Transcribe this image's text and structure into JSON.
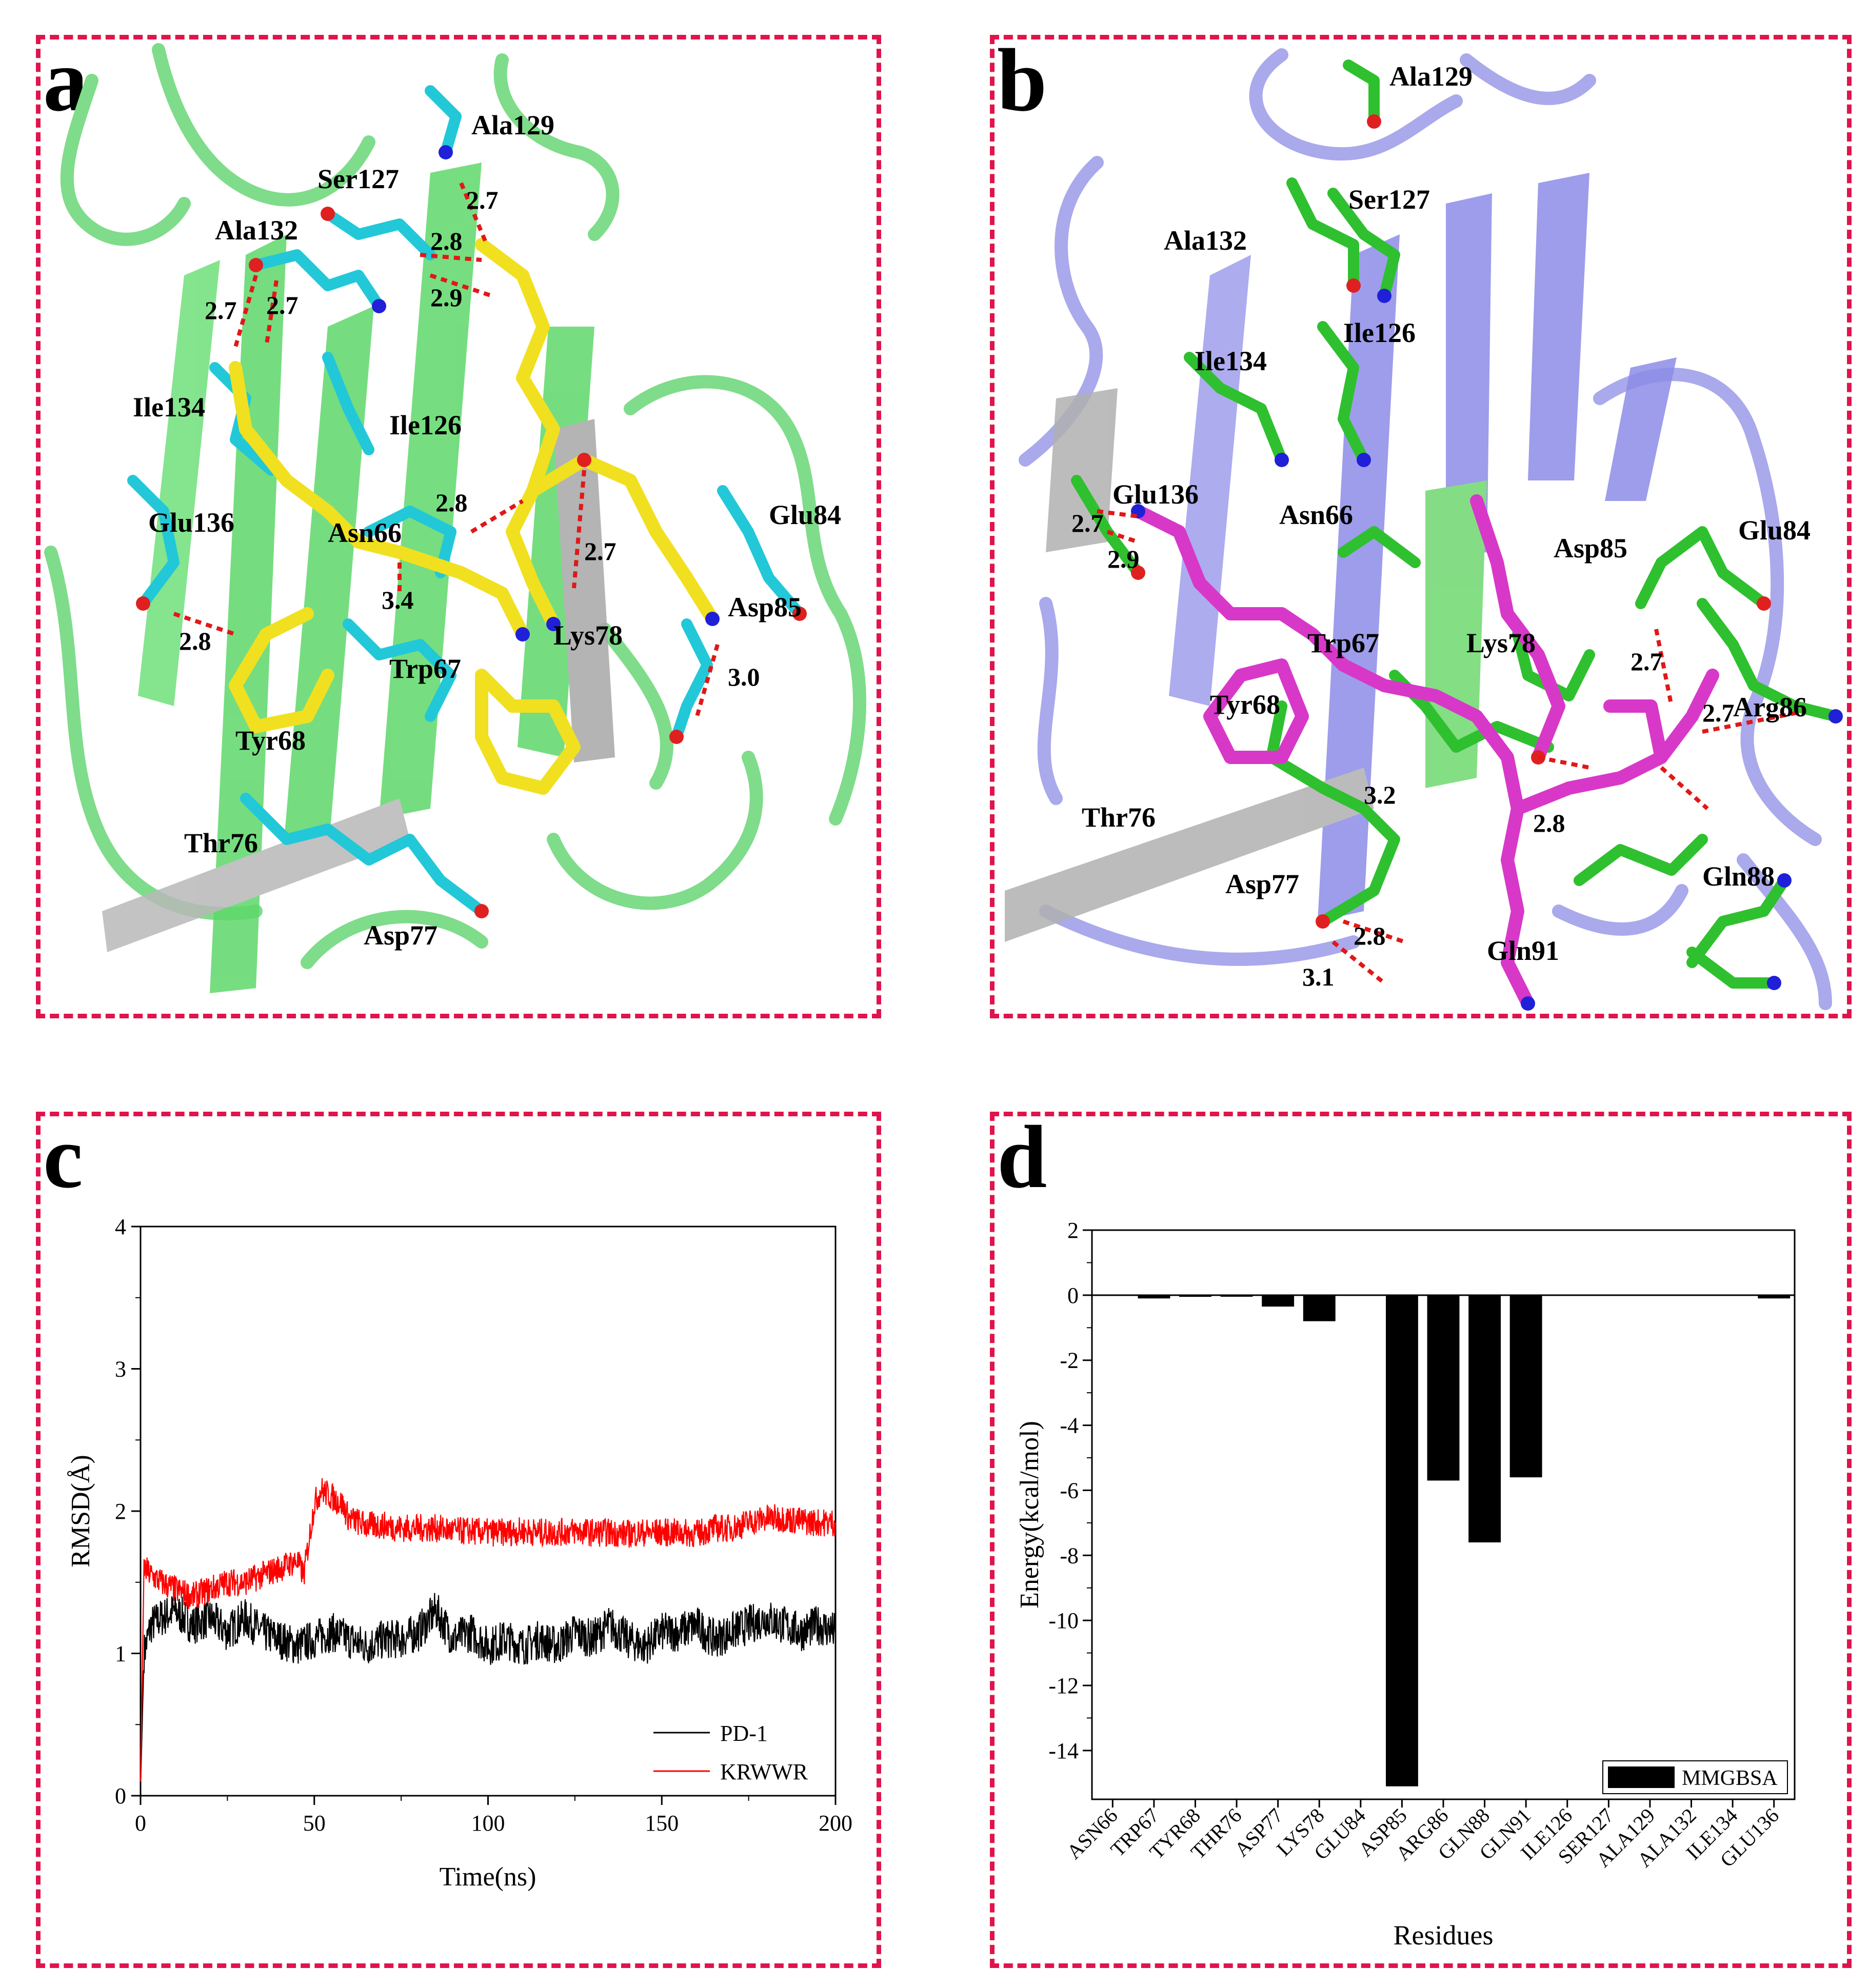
{
  "panel_a": {
    "letter": "a",
    "residue_labels": [
      "Ala129",
      "Ser127",
      "Ala132",
      "Ile134",
      "Ile126",
      "Glu136",
      "Asn66",
      "Glu84",
      "Asp85",
      "Lys78",
      "Trp67",
      "Tyr68",
      "Thr76",
      "Asp77"
    ],
    "hbond_labels": [
      "2.7",
      "2.8",
      "2.9",
      "2.7",
      "2.7",
      "2.8",
      "2.7",
      "2.8",
      "3.4",
      "3.0"
    ],
    "colors": {
      "cartoon": "#7fdc8a",
      "sheet": "#5ed86a",
      "residues": "#22c8d8",
      "ligand": "#f0e020",
      "nitrogen": "#2020d8",
      "oxygen": "#e02020",
      "hbond": "#e01818"
    }
  },
  "panel_b": {
    "letter": "b",
    "residue_labels": [
      "Ala129",
      "Ser127",
      "Ala132",
      "Ile126",
      "Ile134",
      "Glu136",
      "Asn66",
      "Asp85",
      "Glu84",
      "Trp67",
      "Lys78",
      "Tyr68",
      "Arg86",
      "Thr76",
      "Gln88",
      "Asp77",
      "Gln91"
    ],
    "hbond_labels": [
      "2.7",
      "2.9",
      "2.7",
      "2.7",
      "3.2",
      "2.8",
      "2.8",
      "3.1"
    ],
    "colors": {
      "cartoon": "#a9a9ec",
      "sheet": "#8c8ce8",
      "residues": "#2fc02f",
      "ligand": "#d838c8",
      "nitrogen": "#2020d8",
      "oxygen": "#e02020",
      "hbond": "#e01818"
    }
  },
  "panel_c": {
    "letter": "c",
    "chart_data": {
      "type": "line",
      "xlabel": "Time(ns)",
      "ylabel": "RMSD(Å)",
      "xlim": [
        0,
        200
      ],
      "ylim": [
        0,
        4
      ],
      "xticks": [
        "0",
        "50",
        "100",
        "150",
        "200"
      ],
      "yticks": [
        "0",
        "1",
        "2",
        "3",
        "4"
      ],
      "legend_position": "bottom-right",
      "series": [
        {
          "name": "PD-1",
          "color": "#000000",
          "x": [
            0,
            1,
            3,
            6,
            10,
            15,
            20,
            25,
            30,
            35,
            40,
            45,
            50,
            55,
            60,
            65,
            70,
            75,
            80,
            85,
            90,
            95,
            100,
            105,
            110,
            115,
            120,
            125,
            130,
            135,
            140,
            145,
            150,
            155,
            160,
            165,
            170,
            175,
            180,
            185,
            190,
            195,
            200
          ],
          "y": [
            0.05,
            1.0,
            1.2,
            1.25,
            1.3,
            1.2,
            1.25,
            1.15,
            1.25,
            1.15,
            1.1,
            1.05,
            1.1,
            1.15,
            1.1,
            1.05,
            1.1,
            1.1,
            1.15,
            1.3,
            1.1,
            1.15,
            1.05,
            1.1,
            1.05,
            1.1,
            1.05,
            1.15,
            1.1,
            1.2,
            1.1,
            1.05,
            1.15,
            1.15,
            1.2,
            1.1,
            1.15,
            1.2,
            1.25,
            1.2,
            1.15,
            1.2,
            1.15
          ]
        },
        {
          "name": "KRWWR",
          "color": "#ff0000",
          "x": [
            0,
            1,
            3,
            6,
            10,
            15,
            20,
            25,
            30,
            35,
            40,
            45,
            47,
            50,
            52,
            55,
            58,
            60,
            65,
            70,
            75,
            80,
            85,
            90,
            95,
            100,
            105,
            110,
            115,
            120,
            125,
            130,
            135,
            140,
            145,
            150,
            155,
            160,
            165,
            170,
            175,
            180,
            185,
            190,
            195,
            200
          ],
          "y": [
            0.1,
            1.6,
            1.55,
            1.5,
            1.45,
            1.4,
            1.45,
            1.5,
            1.5,
            1.55,
            1.6,
            1.65,
            1.55,
            2.05,
            2.15,
            2.1,
            2.05,
            1.95,
            1.9,
            1.9,
            1.88,
            1.88,
            1.88,
            1.86,
            1.86,
            1.85,
            1.85,
            1.86,
            1.85,
            1.85,
            1.86,
            1.85,
            1.85,
            1.84,
            1.85,
            1.85,
            1.85,
            1.84,
            1.88,
            1.88,
            1.92,
            1.95,
            1.95,
            1.93,
            1.92,
            1.92
          ]
        }
      ]
    }
  },
  "panel_d": {
    "letter": "d",
    "chart_data": {
      "type": "bar",
      "xlabel": "Residues",
      "ylabel": "Energy(kcal/mol)",
      "ylim": [
        -15.5,
        2
      ],
      "yticks": [
        "2",
        "0",
        "-2",
        "-4",
        "-6",
        "-8",
        "-10",
        "-12",
        "-14"
      ],
      "categories": [
        "ASN66",
        "TRP67",
        "TYR68",
        "THR76",
        "ASP77",
        "LYS78",
        "GLU84",
        "ASP85",
        "ARG86",
        "GLN88",
        "GLN91",
        "ILE126",
        "SER127",
        "ALA129",
        "ALA132",
        "ILE134",
        "GLU136"
      ],
      "series": [
        {
          "name": "MMGBSA",
          "color": "#000000",
          "values": [
            0.0,
            -0.1,
            -0.05,
            -0.03,
            -0.35,
            -0.8,
            0.0,
            -15.1,
            -5.7,
            -7.6,
            -5.6,
            0.0,
            0.0,
            0.0,
            0.0,
            0.0,
            -0.1
          ]
        }
      ],
      "legend_position": "bottom-right"
    }
  }
}
